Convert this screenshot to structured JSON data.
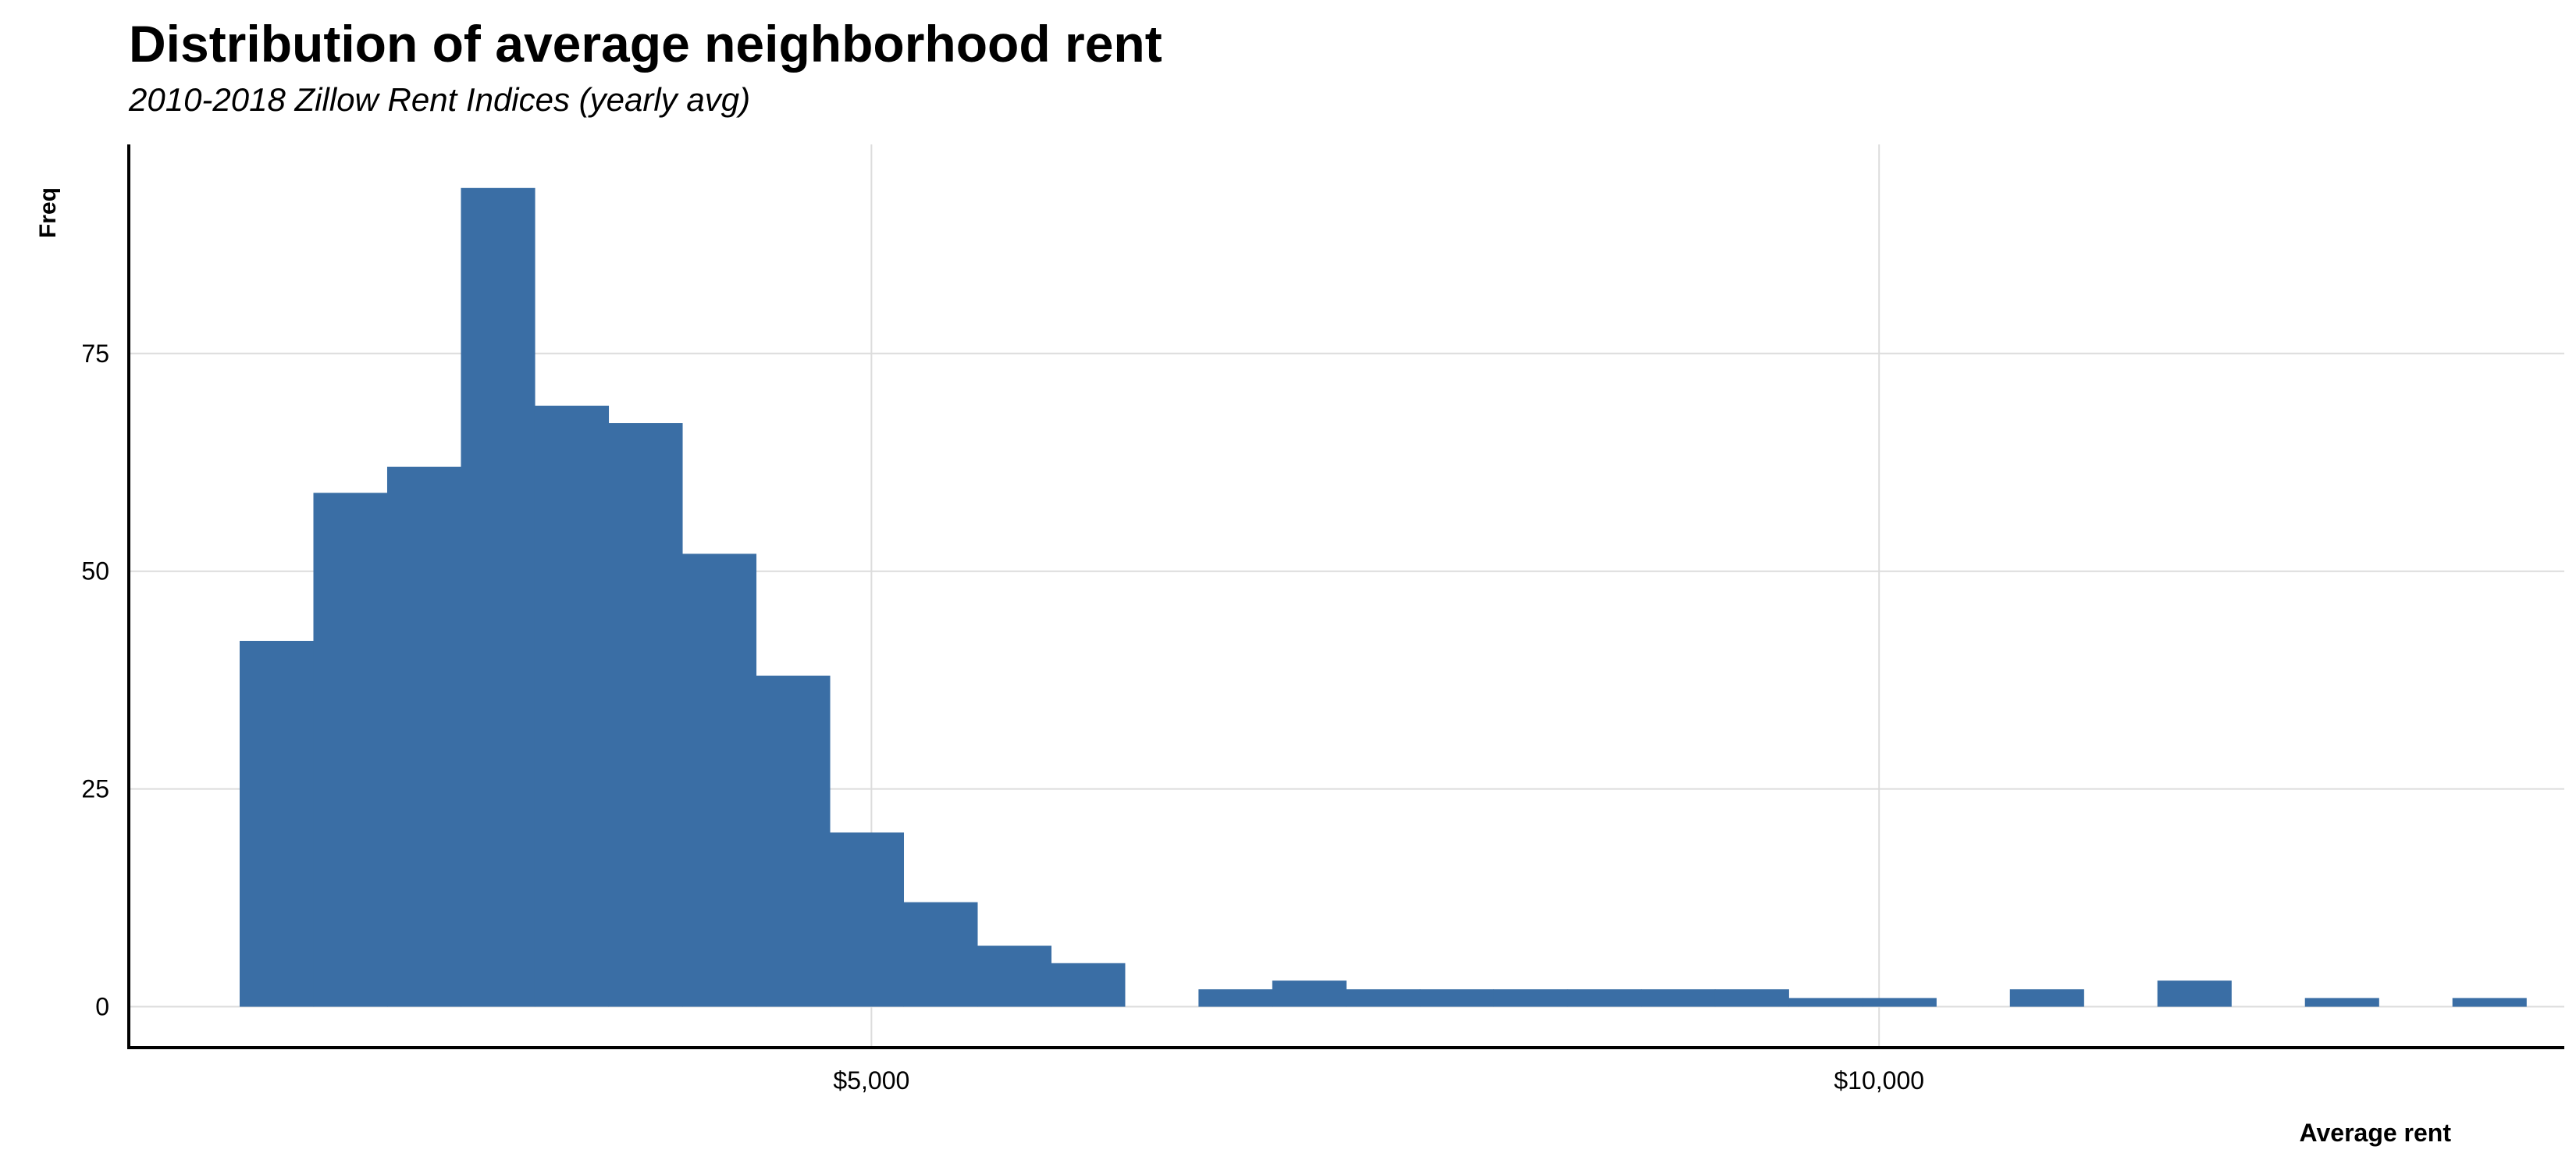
{
  "chart_data": {
    "type": "bar",
    "title": "Distribution of average neighborhood rent",
    "subtitle": "2010-2018 Zillow Rent Indices (yearly avg)",
    "xlabel": "Average rent",
    "ylabel": "Freq",
    "bin_width": 366,
    "bins": [
      {
        "x0": 1865,
        "x1": 2231,
        "count": 42
      },
      {
        "x0": 2231,
        "x1": 2597,
        "count": 59
      },
      {
        "x0": 2597,
        "x1": 2963,
        "count": 62
      },
      {
        "x0": 2963,
        "x1": 3329,
        "count": 94
      },
      {
        "x0": 3329,
        "x1": 3695,
        "count": 69
      },
      {
        "x0": 3695,
        "x1": 4061,
        "count": 67
      },
      {
        "x0": 4061,
        "x1": 4427,
        "count": 52
      },
      {
        "x0": 4427,
        "x1": 4793,
        "count": 38
      },
      {
        "x0": 4793,
        "x1": 5159,
        "count": 20
      },
      {
        "x0": 5159,
        "x1": 5525,
        "count": 12
      },
      {
        "x0": 5525,
        "x1": 5891,
        "count": 7
      },
      {
        "x0": 5891,
        "x1": 6257,
        "count": 5
      },
      {
        "x0": 6257,
        "x1": 6623,
        "count": 0
      },
      {
        "x0": 6623,
        "x1": 6989,
        "count": 2
      },
      {
        "x0": 6989,
        "x1": 7355,
        "count": 3
      },
      {
        "x0": 7355,
        "x1": 7721,
        "count": 2
      },
      {
        "x0": 7721,
        "x1": 8087,
        "count": 2
      },
      {
        "x0": 8087,
        "x1": 8453,
        "count": 2
      },
      {
        "x0": 8453,
        "x1": 8819,
        "count": 2
      },
      {
        "x0": 8819,
        "x1": 9185,
        "count": 2
      },
      {
        "x0": 9185,
        "x1": 9551,
        "count": 2
      },
      {
        "x0": 9551,
        "x1": 9917,
        "count": 1
      },
      {
        "x0": 9917,
        "x1": 10283,
        "count": 1
      },
      {
        "x0": 10283,
        "x1": 10649,
        "count": 0
      },
      {
        "x0": 10649,
        "x1": 11015,
        "count": 2
      },
      {
        "x0": 11015,
        "x1": 11381,
        "count": 0
      },
      {
        "x0": 11381,
        "x1": 11747,
        "count": 3
      },
      {
        "x0": 11747,
        "x1": 12113,
        "count": 0
      },
      {
        "x0": 12113,
        "x1": 12479,
        "count": 1
      },
      {
        "x0": 12479,
        "x1": 12845,
        "count": 0
      },
      {
        "x0": 12845,
        "x1": 13211,
        "count": 1
      }
    ],
    "x_ticks": [
      {
        "value": 5000,
        "label": "$5,000"
      },
      {
        "value": 10000,
        "label": "$10,000"
      }
    ],
    "y_ticks": [
      {
        "value": 0,
        "label": "0"
      },
      {
        "value": 25,
        "label": "25"
      },
      {
        "value": 50,
        "label": "50"
      },
      {
        "value": 75,
        "label": "75"
      }
    ],
    "xlim": [
      1315,
      13400
    ],
    "ylim": [
      -4.7,
      99
    ],
    "grid": true,
    "legend": "none",
    "colors": {
      "bar": "#3a6ea5",
      "grid": "#dcdcdc",
      "axis": "#000000"
    }
  }
}
